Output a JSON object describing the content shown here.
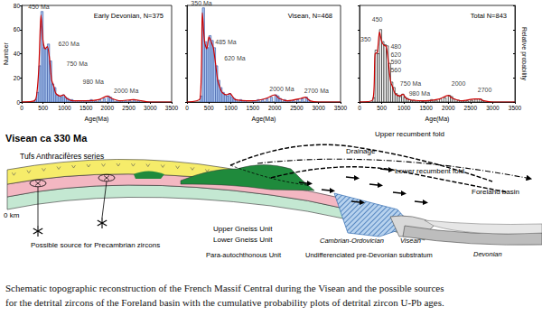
{
  "chart_data": [
    {
      "type": "histogram",
      "title": "Early Devonian, N=375",
      "x_label": "Age(Ma)",
      "y_label": "Number",
      "xlim": [
        0,
        3500
      ],
      "xticks": [
        0,
        500,
        1000,
        1500,
        2000,
        2500,
        3000,
        3500
      ],
      "ylim": [
        0,
        80
      ],
      "yticks": [
        0,
        20,
        40,
        60,
        80
      ],
      "grid": false,
      "bins": [
        0,
        50,
        100,
        150,
        200,
        250,
        300,
        350,
        400,
        450,
        500,
        550,
        600,
        650,
        700,
        750,
        800,
        850,
        900,
        950,
        1000,
        1050,
        1100,
        1150,
        1200,
        1250,
        1300,
        1350,
        1400,
        1450,
        1500,
        1550,
        1600,
        1650,
        1700,
        1750,
        1800,
        1850,
        1900,
        1950,
        2000,
        2050,
        2100,
        2150,
        2200,
        2250,
        2300,
        2350,
        2400,
        2450,
        2500,
        2550,
        2600,
        2650,
        2700,
        2750,
        2800,
        2850,
        2900,
        2950,
        3000,
        3050,
        3100,
        3150,
        3200,
        3250,
        3300,
        3350,
        3400,
        3450,
        3500
      ],
      "counts": [
        0,
        0,
        0,
        0,
        0,
        0,
        2,
        8,
        30,
        75,
        45,
        44,
        48,
        34,
        15,
        12,
        6,
        5,
        4,
        6,
        4,
        3,
        2,
        2,
        1,
        0,
        1,
        0,
        1,
        0,
        1,
        0,
        2,
        0,
        1,
        0,
        2,
        0,
        3,
        0,
        5,
        4,
        2,
        0,
        1,
        0,
        1,
        0,
        1,
        0,
        1,
        0,
        2,
        0,
        1,
        0,
        0,
        0,
        0,
        0,
        0,
        0,
        0,
        0,
        0,
        0,
        0,
        0,
        0,
        0
      ],
      "color": "#a9c4ee",
      "curve": {
        "type": "line",
        "color": "#cc0000",
        "line_style": "solid",
        "x": [
          0,
          300,
          350,
          400,
          450,
          500,
          550,
          600,
          650,
          700,
          750,
          800,
          900,
          980,
          1050,
          1200,
          1500,
          1800,
          2000,
          2100,
          2300,
          2600,
          2800,
          3000,
          3500
        ],
        "values": [
          0,
          1,
          6,
          28,
          72,
          50,
          44,
          46,
          36,
          18,
          13,
          7,
          5,
          6,
          3,
          1,
          1,
          2,
          5,
          3,
          1,
          2,
          1,
          0,
          0
        ]
      },
      "annotations": [
        {
          "text": "450 Ma",
          "x": 400,
          "y": 79
        },
        {
          "text": "620 Ma",
          "x": 1100,
          "y": 48
        },
        {
          "text": "750 Ma",
          "x": 1290,
          "y": 32
        },
        {
          "text": "980 Ma",
          "x": 1670,
          "y": 17
        },
        {
          "text": "2000 Ma",
          "x": 2440,
          "y": 9
        }
      ]
    },
    {
      "type": "histogram",
      "title": "Visean, N=468",
      "x_label": "Age(Ma)",
      "tick_labels": "x",
      "xlim": [
        0,
        3500
      ],
      "xticks": [
        0,
        500,
        1000,
        1500,
        2000,
        2500,
        3000,
        3500
      ],
      "ylim": [
        0,
        80
      ],
      "yticks": [
        0,
        20,
        40,
        60,
        80
      ],
      "grid": false,
      "bins": [
        0,
        50,
        100,
        150,
        200,
        250,
        300,
        350,
        400,
        450,
        500,
        550,
        600,
        650,
        700,
        750,
        800,
        850,
        900,
        950,
        1000,
        1050,
        1100,
        1150,
        1200,
        1250,
        1300,
        1350,
        1400,
        1450,
        1500,
        1550,
        1600,
        1650,
        1700,
        1750,
        1800,
        1850,
        1900,
        1950,
        2000,
        2050,
        2100,
        2150,
        2200,
        2250,
        2300,
        2350,
        2400,
        2450,
        2500,
        2550,
        2600,
        2650,
        2700,
        2750,
        2800,
        2850,
        2900,
        2950,
        3000,
        3050,
        3100,
        3150,
        3200,
        3250,
        3300,
        3350,
        3400,
        3450,
        3500
      ],
      "counts": [
        0,
        0,
        0,
        0,
        0,
        0,
        5,
        78,
        50,
        45,
        55,
        51,
        45,
        30,
        18,
        12,
        8,
        6,
        5,
        7,
        4,
        3,
        2,
        0,
        2,
        0,
        1,
        0,
        0,
        0,
        1,
        0,
        2,
        0,
        2,
        0,
        3,
        0,
        4,
        0,
        6,
        5,
        3,
        0,
        2,
        0,
        1,
        0,
        1,
        0,
        2,
        0,
        3,
        0,
        4,
        2,
        0,
        0,
        0,
        0,
        0,
        0,
        0,
        0,
        0,
        0,
        0,
        0,
        0,
        0
      ],
      "color": "#a9c4ee",
      "curve": {
        "type": "line",
        "color": "#cc0000",
        "line_style": "solid",
        "x": [
          0,
          300,
          350,
          400,
          450,
          500,
          550,
          600,
          650,
          700,
          750,
          800,
          900,
          980,
          1100,
          1500,
          1800,
          2000,
          2100,
          2300,
          2600,
          2700,
          2800,
          3000,
          3500
        ],
        "values": [
          0,
          3,
          74,
          50,
          44,
          54,
          50,
          45,
          32,
          18,
          12,
          8,
          6,
          7,
          2,
          1,
          3,
          6,
          3,
          1,
          3,
          4,
          1,
          0,
          0
        ]
      },
      "annotations": [
        {
          "text": "350 Ma",
          "x": 330,
          "y": 82
        },
        {
          "text": "485 Ma",
          "x": 885,
          "y": 50
        },
        {
          "text": "620 Ma",
          "x": 1090,
          "y": 36
        },
        {
          "text": "2000 Ma",
          "x": 2160,
          "y": 11
        },
        {
          "text": "2700 Ma",
          "x": 2950,
          "y": 9
        }
      ]
    },
    {
      "type": "histogram",
      "title": "Total N=843",
      "x_label": "Age(Ma)",
      "y2_label": "Relative probability",
      "tick_labels": "x",
      "xlim": [
        0,
        3500
      ],
      "xticks": [
        0,
        500,
        1000,
        1500,
        2000,
        2500,
        3000,
        3500
      ],
      "ylim": [
        0,
        160
      ],
      "yticks": [
        0,
        40,
        80,
        120,
        160
      ],
      "y2lim": [
        0,
        160
      ],
      "y2ticks": [
        0,
        40,
        80,
        120,
        160
      ],
      "grid": false,
      "bins": [
        0,
        50,
        100,
        150,
        200,
        250,
        300,
        350,
        400,
        450,
        500,
        550,
        600,
        650,
        700,
        750,
        800,
        850,
        900,
        950,
        1000,
        1050,
        1100,
        1150,
        1200,
        1250,
        1300,
        1350,
        1400,
        1450,
        1500,
        1550,
        1600,
        1650,
        1700,
        1750,
        1800,
        1850,
        1900,
        1950,
        2000,
        2050,
        2100,
        2150,
        2200,
        2250,
        2300,
        2350,
        2400,
        2450,
        2500,
        2550,
        2600,
        2650,
        2700,
        2750,
        2800,
        2850,
        2900,
        2950,
        3000,
        3050,
        3100,
        3150,
        3200,
        3250,
        3300,
        3350,
        3400,
        3450,
        3500
      ],
      "counts": [
        0,
        0,
        0,
        0,
        0,
        0,
        7,
        86,
        80,
        120,
        100,
        95,
        93,
        64,
        33,
        24,
        14,
        11,
        9,
        13,
        8,
        6,
        4,
        2,
        3,
        0,
        2,
        0,
        1,
        0,
        2,
        0,
        4,
        0,
        3,
        0,
        5,
        0,
        7,
        0,
        11,
        9,
        5,
        0,
        3,
        0,
        2,
        0,
        2,
        0,
        3,
        0,
        5,
        0,
        5,
        2,
        0,
        0,
        0,
        0,
        0,
        0,
        0,
        0,
        0,
        0,
        0,
        0,
        0,
        0
      ],
      "color": "#ffffff",
      "curve": {
        "type": "line",
        "color": "#cc0000",
        "line_style": "solid",
        "axis": "y2",
        "x": [
          0,
          300,
          350,
          400,
          450,
          500,
          550,
          600,
          650,
          700,
          750,
          800,
          900,
          980,
          1050,
          1200,
          1500,
          1800,
          2000,
          2100,
          2300,
          2600,
          2700,
          2800,
          3000,
          3500
        ],
        "values": [
          0,
          4,
          80,
          82,
          116,
          100,
          94,
          92,
          66,
          34,
          24,
          14,
          10,
          13,
          6,
          3,
          2,
          5,
          11,
          6,
          2,
          5,
          5,
          2,
          0,
          0
        ]
      },
      "annotations": [
        {
          "text": "450",
          "x": 400,
          "y": 137
        },
        {
          "text": "350",
          "x": 140,
          "y": 104
        },
        {
          "text": "480",
          "x": 820,
          "y": 92
        },
        {
          "text": "620",
          "x": 820,
          "y": 79
        },
        {
          "text": "590",
          "x": 820,
          "y": 66
        },
        {
          "text": "560",
          "x": 820,
          "y": 53
        },
        {
          "text": "750 Ma",
          "x": 1150,
          "y": 30
        },
        {
          "text": "980 Ma",
          "x": 1350,
          "y": 14
        },
        {
          "text": "2000",
          "x": 2230,
          "y": 30
        },
        {
          "text": "2700",
          "x": 2820,
          "y": 20
        }
      ]
    }
  ],
  "diagram": {
    "title": "Visean ca 330 Ma",
    "labels": [
      "Tufs Anthracifères series",
      "Drainage",
      "Upper recumbent fold",
      "Lower recumbent fold",
      "Foreland basin",
      "0 km",
      "Upper Gneiss Unit",
      "Lower Gneiss Unit",
      "Cambrian-Ordovician",
      "Visean",
      "Devonian",
      "Possible source for Precambrian zircons",
      "Para-autochthonous Unit",
      "Undifferenciated pre-Devonian substratum"
    ]
  },
  "caption": [
    "Schematic topographic reconstruction of the French Massif Central during the Visean and the possible sources",
    "for the detrital zircons of the Foreland basin with the cumulative probability plots of detrital zircon U-Pb ages."
  ]
}
